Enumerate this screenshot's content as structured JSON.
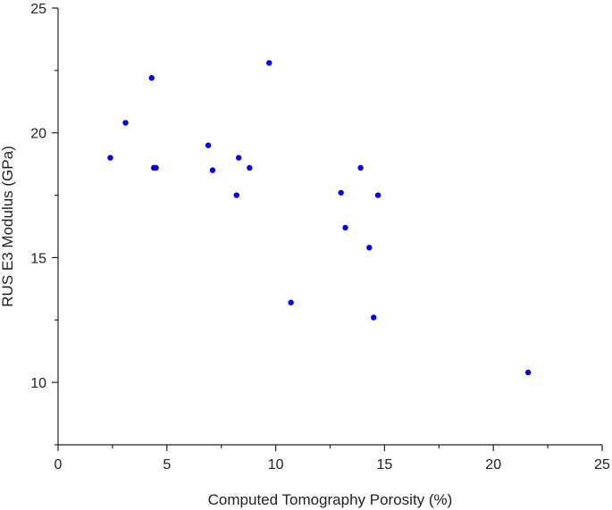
{
  "chart_data": {
    "type": "scatter",
    "title": "",
    "xlabel": "Computed Tomography Porosity (%)",
    "ylabel": "RUS E3 Modulus (GPa)",
    "xlim": [
      0,
      25
    ],
    "ylim": [
      7.5,
      25
    ],
    "x_ticks": [
      0,
      5,
      10,
      15,
      20,
      25
    ],
    "y_ticks": [
      10,
      15,
      20,
      25
    ],
    "grid": false,
    "legend": "none",
    "marker_color": "#0000ee",
    "series": [
      {
        "points": [
          {
            "x": 2.4,
            "y": 19.0
          },
          {
            "x": 3.1,
            "y": 20.4
          },
          {
            "x": 4.3,
            "y": 22.2
          },
          {
            "x": 4.4,
            "y": 18.6
          },
          {
            "x": 4.5,
            "y": 18.6
          },
          {
            "x": 6.9,
            "y": 19.5
          },
          {
            "x": 7.1,
            "y": 18.5
          },
          {
            "x": 8.2,
            "y": 17.5
          },
          {
            "x": 8.3,
            "y": 19.0
          },
          {
            "x": 8.8,
            "y": 18.6
          },
          {
            "x": 9.7,
            "y": 22.8
          },
          {
            "x": 10.7,
            "y": 13.2
          },
          {
            "x": 13.0,
            "y": 17.6
          },
          {
            "x": 13.2,
            "y": 16.2
          },
          {
            "x": 13.9,
            "y": 18.6
          },
          {
            "x": 14.3,
            "y": 15.4
          },
          {
            "x": 14.5,
            "y": 12.6
          },
          {
            "x": 14.7,
            "y": 17.5
          },
          {
            "x": 21.6,
            "y": 10.4
          }
        ]
      }
    ]
  }
}
